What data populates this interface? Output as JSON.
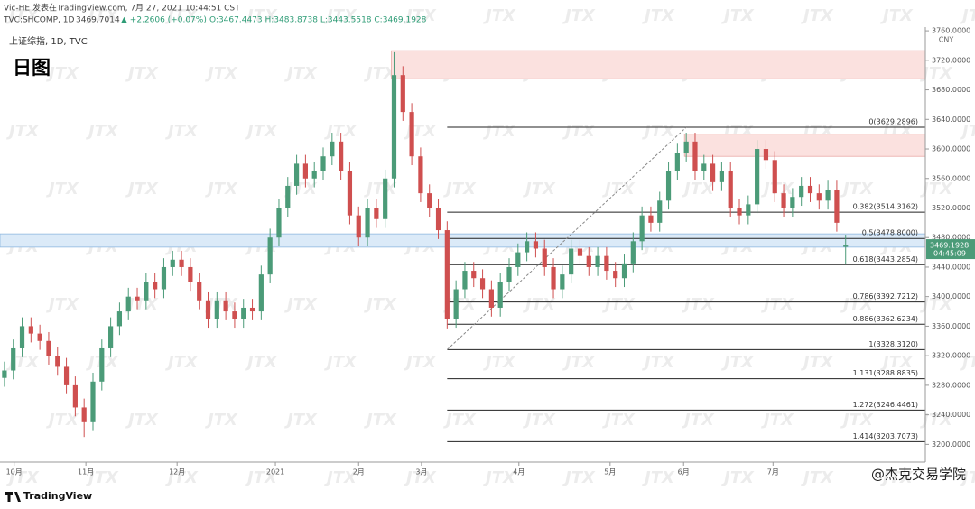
{
  "chart_data": {
    "type": "candlestick",
    "header": {
      "publisher": "Vic-HE 发表在TradingView.com, 7月 27, 2021 10:44:51 CST",
      "symbol": "TVC:SHCOMP, 1D",
      "last": "3469.7014",
      "change": "▲ +2.2606 (+0.07%)",
      "ohlc": "O:3467.4473 H:3483.8738 L:3443.5518 C:3469.1928"
    },
    "legend_label": "上证综指, 1D, TVC",
    "title": "日图",
    "currency": "CNY",
    "countdown": "04:45:09",
    "watermark": "JTX",
    "brand": "TradingView",
    "signature": "@杰克交易学院",
    "up_color": "#4b9b78",
    "down_color": "#cf4f4f",
    "open": [
      3290,
      3300,
      3330,
      3360,
      3350,
      3340,
      3320,
      3305,
      3280,
      3250,
      3230,
      3285,
      3330,
      3360,
      3380,
      3400,
      3395,
      3420,
      3410,
      3440,
      3450,
      3440,
      3420,
      3395,
      3370,
      3395,
      3380,
      3370,
      3385,
      3380,
      3430,
      3480,
      3520,
      3550,
      3580,
      3560,
      3570,
      3590,
      3610,
      3570,
      3510,
      3480,
      3520,
      3505,
      3560,
      3700,
      3650,
      3590,
      3540,
      3520,
      3490,
      3370,
      3410,
      3435,
      3425,
      3410,
      3385,
      3420,
      3440,
      3460,
      3475,
      3465,
      3440,
      3410,
      3430,
      3465,
      3455,
      3440,
      3455,
      3435,
      3425,
      3445,
      3475,
      3510,
      3500,
      3530,
      3570,
      3595,
      3610,
      3570,
      3580,
      3555,
      3570,
      3520,
      3510,
      3525,
      3600,
      3585,
      3540,
      3520,
      3535,
      3550,
      3540,
      3530,
      3545,
      3467.4473
    ],
    "high": [
      3312,
      3342,
      3372,
      3372,
      3362,
      3352,
      3332,
      3317,
      3292,
      3262,
      3297,
      3342,
      3372,
      3392,
      3412,
      3412,
      3432,
      3432,
      3452,
      3462,
      3462,
      3452,
      3432,
      3407,
      3407,
      3407,
      3392,
      3397,
      3397,
      3442,
      3492,
      3532,
      3562,
      3592,
      3592,
      3582,
      3602,
      3622,
      3622,
      3582,
      3522,
      3532,
      3532,
      3572,
      3731,
      3712,
      3662,
      3602,
      3552,
      3532,
      3502,
      3422,
      3447,
      3447,
      3437,
      3422,
      3432,
      3452,
      3472,
      3487,
      3487,
      3477,
      3452,
      3442,
      3477,
      3477,
      3467,
      3467,
      3467,
      3447,
      3457,
      3487,
      3522,
      3522,
      3542,
      3582,
      3607,
      3622,
      3622,
      3592,
      3592,
      3582,
      3582,
      3532,
      3537,
      3612,
      3612,
      3597,
      3552,
      3547,
      3562,
      3562,
      3552,
      3557,
      3557,
      3483.8738
    ],
    "low": [
      3278,
      3288,
      3318,
      3338,
      3328,
      3308,
      3293,
      3268,
      3238,
      3210,
      3218,
      3273,
      3318,
      3348,
      3368,
      3383,
      3383,
      3398,
      3398,
      3428,
      3428,
      3408,
      3383,
      3358,
      3358,
      3368,
      3358,
      3358,
      3368,
      3368,
      3418,
      3468,
      3508,
      3538,
      3548,
      3548,
      3558,
      3578,
      3558,
      3498,
      3468,
      3468,
      3493,
      3493,
      3548,
      3638,
      3578,
      3528,
      3508,
      3478,
      3357,
      3358,
      3398,
      3413,
      3398,
      3373,
      3373,
      3408,
      3428,
      3448,
      3453,
      3428,
      3398,
      3398,
      3418,
      3443,
      3428,
      3428,
      3423,
      3413,
      3413,
      3433,
      3463,
      3488,
      3488,
      3518,
      3558,
      3583,
      3558,
      3558,
      3543,
      3543,
      3508,
      3498,
      3498,
      3513,
      3573,
      3528,
      3508,
      3508,
      3523,
      3528,
      3518,
      3518,
      3488,
      3443.5518
    ],
    "close": [
      3300,
      3330,
      3360,
      3350,
      3340,
      3320,
      3305,
      3280,
      3250,
      3230,
      3285,
      3330,
      3360,
      3380,
      3400,
      3395,
      3420,
      3410,
      3440,
      3450,
      3440,
      3420,
      3395,
      3370,
      3395,
      3380,
      3370,
      3385,
      3380,
      3430,
      3480,
      3520,
      3550,
      3580,
      3560,
      3570,
      3590,
      3610,
      3570,
      3510,
      3480,
      3520,
      3505,
      3560,
      3700,
      3650,
      3590,
      3540,
      3520,
      3490,
      3370,
      3410,
      3435,
      3425,
      3410,
      3385,
      3420,
      3440,
      3460,
      3475,
      3465,
      3440,
      3410,
      3430,
      3465,
      3455,
      3440,
      3455,
      3435,
      3425,
      3445,
      3475,
      3510,
      3500,
      3530,
      3570,
      3595,
      3610,
      3570,
      3580,
      3555,
      3570,
      3520,
      3510,
      3525,
      3600,
      3585,
      3540,
      3520,
      3535,
      3550,
      3540,
      3530,
      3545,
      3500,
      3469.1928
    ],
    "xlim": [
      -0.5,
      104
    ],
    "xticks": [
      {
        "value": 1.1,
        "label": "10月"
      },
      {
        "value": 9.2,
        "label": "11月"
      },
      {
        "value": 19.5,
        "label": "12月"
      },
      {
        "value": 30.6,
        "label": "2021"
      },
      {
        "value": 40,
        "label": "2月"
      },
      {
        "value": 47.1,
        "label": "3月"
      },
      {
        "value": 58.1,
        "label": "4月"
      },
      {
        "value": 68.4,
        "label": "5月"
      },
      {
        "value": 76.7,
        "label": "6月"
      },
      {
        "value": 86.8,
        "label": "7月"
      }
    ],
    "ylim": [
      3176,
      3765
    ],
    "yticks": [
      {
        "value": 3200,
        "label": "3200.0000"
      },
      {
        "value": 3240,
        "label": "3240.0000"
      },
      {
        "value": 3280,
        "label": "3280.0000"
      },
      {
        "value": 3320,
        "label": "3320.0000"
      },
      {
        "value": 3360,
        "label": "3360.0000"
      },
      {
        "value": 3400,
        "label": "3400.0000"
      },
      {
        "value": 3440,
        "label": "3440.0000"
      },
      {
        "value": 3480,
        "label": "3480.0000"
      },
      {
        "value": 3520,
        "label": "3520.0000"
      },
      {
        "value": 3560,
        "label": "3560.0000"
      },
      {
        "value": 3600,
        "label": "3600.0000"
      },
      {
        "value": 3640,
        "label": "3640.0000"
      },
      {
        "value": 3680,
        "label": "3680.0000"
      },
      {
        "value": 3720,
        "label": "3720.0000"
      },
      {
        "value": 3760,
        "label": "3760.0000"
      }
    ],
    "zones": [
      {
        "x": [
          43.7,
          104
        ],
        "y": [
          3695,
          3733
        ],
        "color": "#fbe1df"
      },
      {
        "x": [
          76.8,
          104
        ],
        "y": [
          3590,
          3620
        ],
        "color": "#fbe1df"
      },
      {
        "x": [
          -0.5,
          104
        ],
        "y": [
          3467,
          3485
        ],
        "color": "#dbeaf8"
      }
    ],
    "trendline": {
      "x": [
        50,
        77
      ],
      "y": [
        3328.312,
        3629.2896
      ]
    },
    "fib": {
      "x_start": 50,
      "levels": [
        {
          "value": 3629.2896,
          "label": "0(3629.2896)"
        },
        {
          "value": 3514.3162,
          "label": "0.382(3514.3162)"
        },
        {
          "value": 3478.8,
          "label": "0.5(3478.8000)"
        },
        {
          "value": 3443.2854,
          "label": "0.618(3443.2854)"
        },
        {
          "value": 3392.7212,
          "label": "0.786(3392.7212)"
        },
        {
          "value": 3362.6234,
          "label": "0.886(3362.6234)"
        },
        {
          "value": 3328.312,
          "label": "1(3328.3120)"
        },
        {
          "value": 3288.8835,
          "label": "1.131(3288.8835)"
        },
        {
          "value": 3246.4461,
          "label": "1.272(3246.4461)"
        },
        {
          "value": 3203.7073,
          "label": "1.414(3203.7073)"
        }
      ]
    }
  }
}
